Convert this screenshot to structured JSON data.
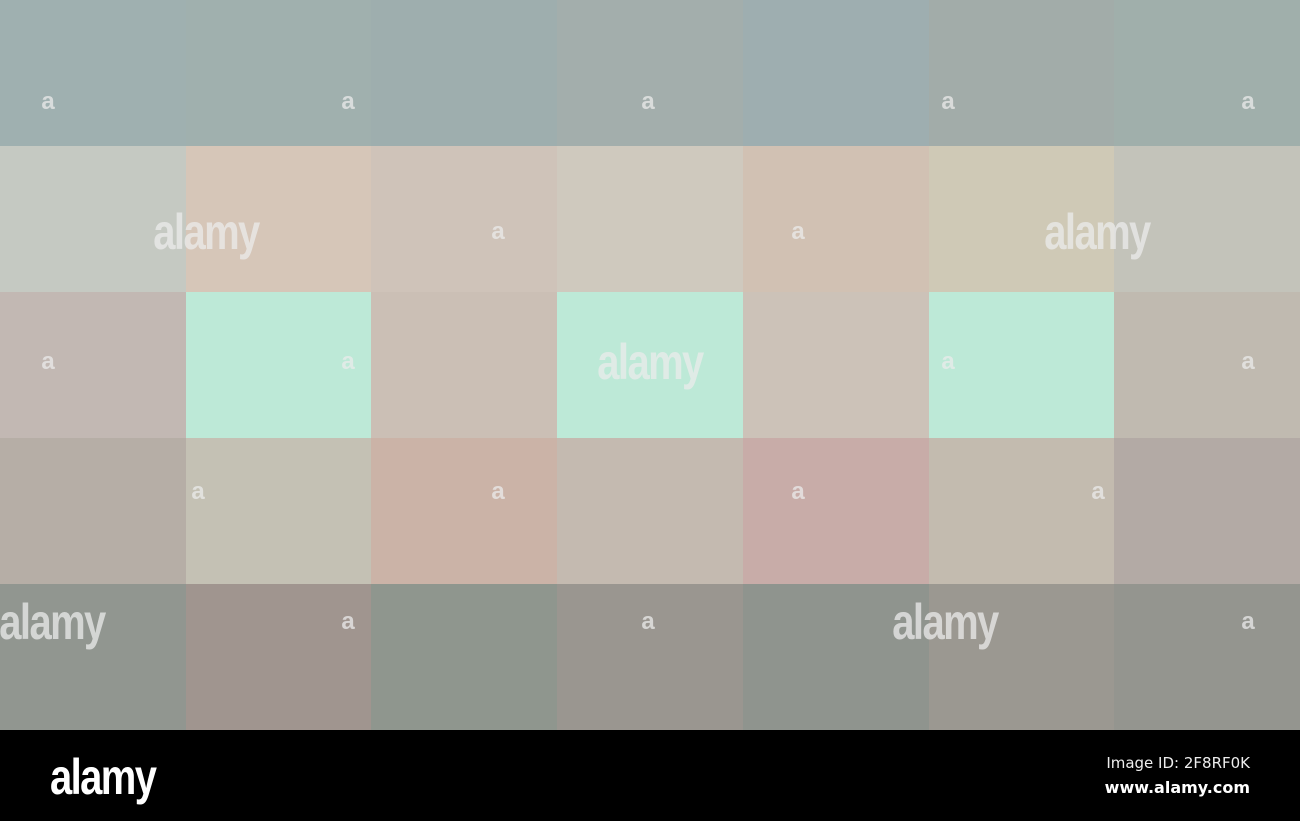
{
  "mosaic": {
    "rows": [
      [
        "#9fb0b0",
        "#a0b0ae",
        "#9eaeae",
        "#a3aeac",
        "#9eaeb0",
        "#a2aca9",
        "#a0afab"
      ],
      [
        "#c5c9c2",
        "#d6c6b8",
        "#cfc3b9",
        "#cfc9be",
        "#d1c1b3",
        "#cfc9b6",
        "#c3c3ba"
      ],
      [
        "#c2b8b3",
        "#bde9d7",
        "#cbbfb5",
        "#bde9d7",
        "#ccc2b8",
        "#bde9d7",
        "#c0bab0"
      ],
      [
        "#b6aea6",
        "#c4c1b4",
        "#cbb3a7",
        "#c4bab0",
        "#c8aca8",
        "#c3bbaf",
        "#b3aaa5"
      ],
      [
        "#919690",
        "#a0958f",
        "#8f968e",
        "#9a9690",
        "#8f948e",
        "#9b9891",
        "#94958f"
      ]
    ]
  },
  "watermark": {
    "small": "a",
    "large": "alamy"
  },
  "footer": {
    "logo": "alamy",
    "image_id": "Image ID: 2F8RF0K",
    "website": "www.alamy.com"
  }
}
